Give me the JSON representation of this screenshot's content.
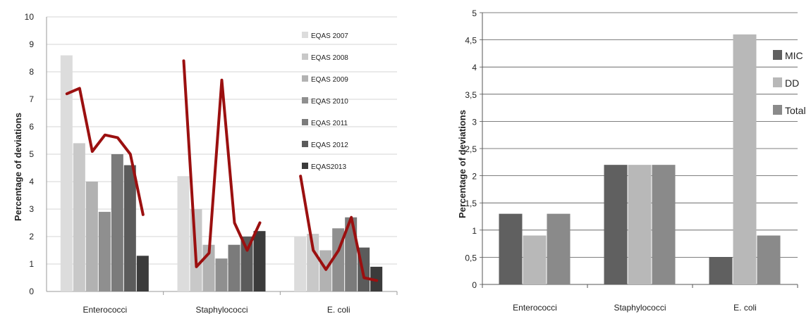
{
  "chart_data": [
    {
      "type": "bar",
      "title": "",
      "ylabel": "Percentage of deviations",
      "xlabel": "",
      "ylim": [
        0,
        10
      ],
      "yticks": [
        "0",
        "1",
        "2",
        "3",
        "4",
        "5",
        "6",
        "7",
        "8",
        "9",
        "10"
      ],
      "categories": [
        "Enterococci",
        "Staphylococci",
        "E. coli"
      ],
      "grid": true,
      "legend_position": "top-right",
      "series": [
        {
          "name": "EQAS 2007",
          "color": "#dcdcdc",
          "values": [
            8.6,
            4.2,
            2.0
          ]
        },
        {
          "name": "EQAS 2008",
          "color": "#c8c8c8",
          "values": [
            5.4,
            3.0,
            2.1
          ]
        },
        {
          "name": "EQAS 2009",
          "color": "#b2b2b2",
          "values": [
            4.0,
            1.7,
            1.5
          ]
        },
        {
          "name": "EQAS 2010",
          "color": "#8f8f8f",
          "values": [
            2.9,
            1.2,
            2.3
          ]
        },
        {
          "name": "EQAS 2011",
          "color": "#7b7b7b",
          "values": [
            5.0,
            1.7,
            2.7
          ]
        },
        {
          "name": "EQAS 2012",
          "color": "#5b5b5b",
          "values": [
            4.6,
            2.0,
            1.6
          ]
        },
        {
          "name": "EQAS2013",
          "color": "#3b3b3b",
          "values": [
            1.3,
            2.2,
            0.9
          ]
        }
      ],
      "trend_line": {
        "color": "#9b1010",
        "groups": [
          [
            7.2,
            7.4,
            5.1,
            5.7,
            5.6,
            5.0,
            2.8
          ],
          [
            8.4,
            0.9,
            1.4,
            7.7,
            2.5,
            1.5,
            2.5
          ],
          [
            4.2,
            1.5,
            0.8,
            1.5,
            2.7,
            0.5,
            0.4
          ]
        ]
      }
    },
    {
      "type": "bar",
      "title": "",
      "ylabel": "Percentage of deviations",
      "xlabel": "",
      "ylim": [
        0,
        5
      ],
      "yticks": [
        "0",
        "0,5",
        "1",
        "1,5",
        "2",
        "2,5",
        "3",
        "3,5",
        "4",
        "4,5",
        "5"
      ],
      "categories": [
        "Enterococci",
        "Staphylococci",
        "E. coli"
      ],
      "grid": true,
      "legend_position": "right",
      "series": [
        {
          "name": "MIC",
          "color": "#606060",
          "values": [
            1.3,
            2.2,
            0.5
          ]
        },
        {
          "name": "DD",
          "color": "#b8b8b8",
          "values": [
            0.9,
            2.2,
            4.6
          ]
        },
        {
          "name": "Total",
          "color": "#8a8a8a",
          "values": [
            1.3,
            2.2,
            0.9
          ]
        }
      ]
    }
  ]
}
